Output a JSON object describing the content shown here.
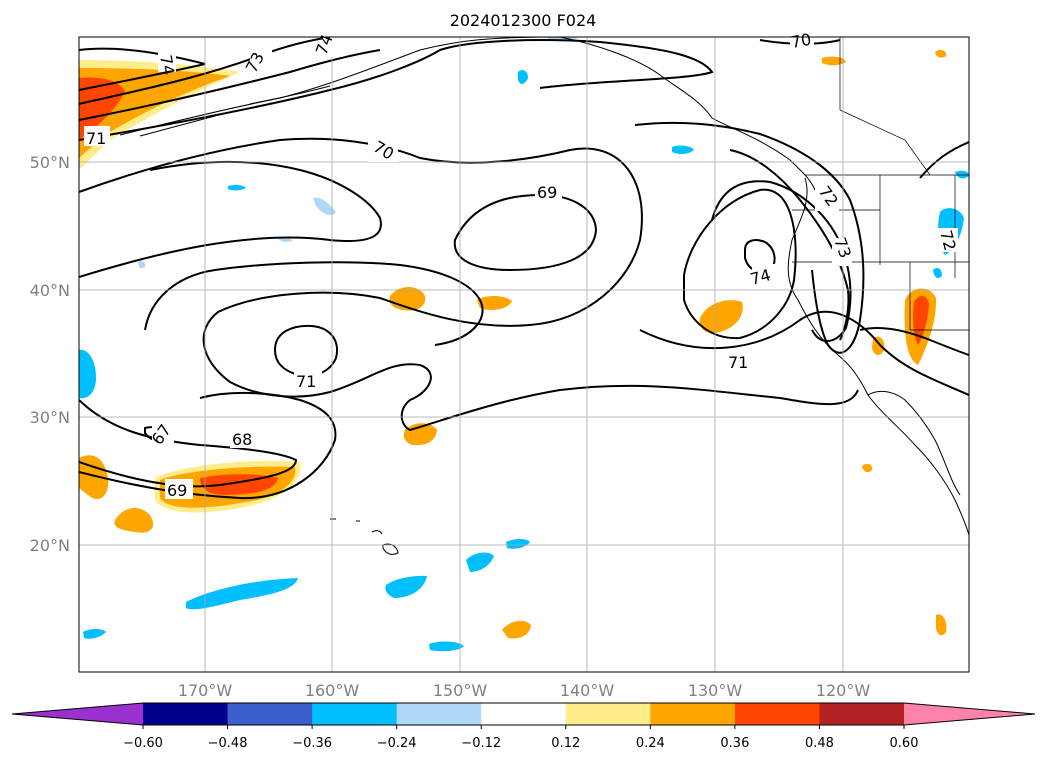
{
  "title": "2024012300 F024",
  "latitude_labels": [
    "50°N",
    "40°N",
    "30°N",
    "20°N"
  ],
  "longitude_labels": [
    "170°W",
    "160°W",
    "150°W",
    "140°W",
    "130°W",
    "120°W"
  ],
  "colorbar": {
    "tick_labels": [
      "−0.60",
      "−0.48",
      "−0.36",
      "−0.24",
      "−0.12",
      "0.12",
      "0.24",
      "0.36",
      "0.48",
      "0.60"
    ],
    "colors": [
      "#9b30d0",
      "#00008b",
      "#3a5fcd",
      "#00bfff",
      "#add8f6",
      "#ffffff",
      "#ffec8b",
      "#ffa500",
      "#ff4500",
      "#b22222",
      "#ff82ab"
    ]
  },
  "contour_labels": [
    "74",
    "73",
    "74",
    "71",
    "70",
    "69",
    "71",
    "68",
    "67",
    "69",
    "72",
    "73",
    "74",
    "71",
    "72",
    "70"
  ]
}
